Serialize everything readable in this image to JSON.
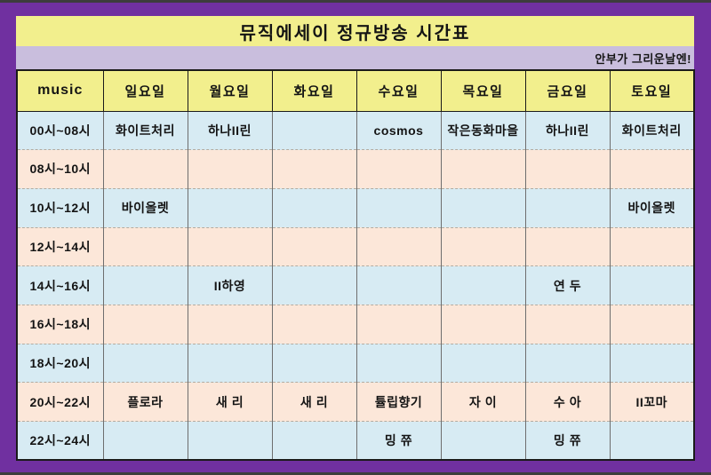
{
  "page": {
    "title": "뮤직에세이 정규방송 시간표",
    "subtitle": "안부가 그리운날엔!"
  },
  "colors": {
    "frame": "#7030a0",
    "edge_strip": "#3c3c3c",
    "title_bg": "#f2ef8d",
    "subtitle_bg": "#c9bedd",
    "header_bg": "#f2ef8d",
    "time_col_bg": "#d9d3c5",
    "row_blue": "#d7ebf3",
    "row_pink": "#fce7d9",
    "grid_vertical": "#6e6e6e",
    "grid_dotted": "#b3aca1"
  },
  "table": {
    "corner_label": "music",
    "day_headers": [
      "일요일",
      "월요일",
      "화요일",
      "수요일",
      "목요일",
      "금요일",
      "토요일"
    ],
    "rows": [
      {
        "time": "00시~08시",
        "tone": "blue",
        "cells": [
          "화이트처리",
          "하나II린",
          "",
          "cosmos",
          "작은동화마을",
          "하나II린",
          "화이트처리"
        ]
      },
      {
        "time": "08시~10시",
        "tone": "pink",
        "cells": [
          "",
          "",
          "",
          "",
          "",
          "",
          ""
        ]
      },
      {
        "time": "10시~12시",
        "tone": "blue",
        "cells": [
          "바이올렛",
          "",
          "",
          "",
          "",
          "",
          "바이올렛"
        ]
      },
      {
        "time": "12시~14시",
        "tone": "pink",
        "cells": [
          "",
          "",
          "",
          "",
          "",
          "",
          ""
        ]
      },
      {
        "time": "14시~16시",
        "tone": "blue",
        "cells": [
          "",
          "II하영",
          "",
          "",
          "",
          "연 두",
          ""
        ]
      },
      {
        "time": "16시~18시",
        "tone": "pink",
        "cells": [
          "",
          "",
          "",
          "",
          "",
          "",
          ""
        ]
      },
      {
        "time": "18시~20시",
        "tone": "blue",
        "cells": [
          "",
          "",
          "",
          "",
          "",
          "",
          ""
        ]
      },
      {
        "time": "20시~22시",
        "tone": "pink",
        "cells": [
          "플로라",
          "새 리",
          "새 리",
          "튤립향기",
          "자 이",
          "수 아",
          "II꼬마"
        ]
      },
      {
        "time": "22시~24시",
        "tone": "blue",
        "cells": [
          "",
          "",
          "",
          "밍 쮸",
          "",
          "밍 쮸",
          ""
        ]
      }
    ]
  }
}
